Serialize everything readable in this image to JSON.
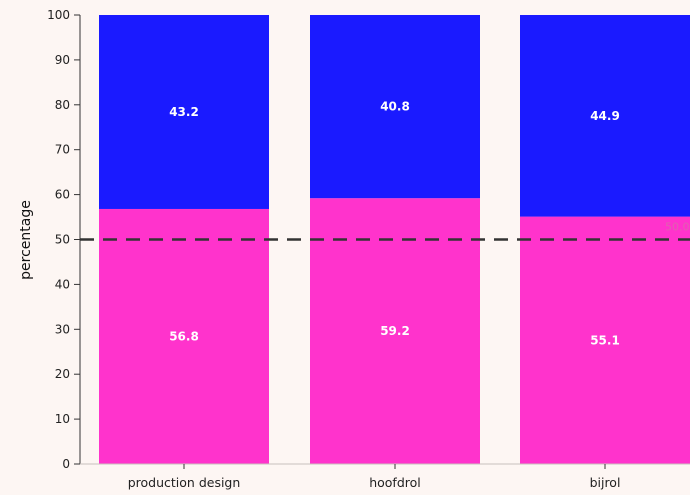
{
  "colors": {
    "background": "#fdf6f3",
    "pink": "#ff33cc",
    "blue": "#1a1aff",
    "reference_line": "#333333"
  },
  "chart_data": {
    "type": "bar",
    "stacked": true,
    "categories": [
      "production design",
      "hoofdrol",
      "bijrol"
    ],
    "series": [
      {
        "color": "#ff33cc",
        "values": [
          56.8,
          59.2,
          55.1
        ]
      },
      {
        "color": "#1a1aff",
        "values": [
          43.2,
          40.8,
          44.9
        ]
      }
    ],
    "ylabel": "percentage",
    "xlabel": "",
    "ylim": [
      0,
      100
    ],
    "yticks": [
      0,
      10,
      20,
      30,
      40,
      50,
      60,
      70,
      80,
      90,
      100
    ],
    "reference_line": {
      "value": 50,
      "style": "dashed",
      "label": "50.0"
    },
    "grid": false,
    "legend": "none"
  }
}
